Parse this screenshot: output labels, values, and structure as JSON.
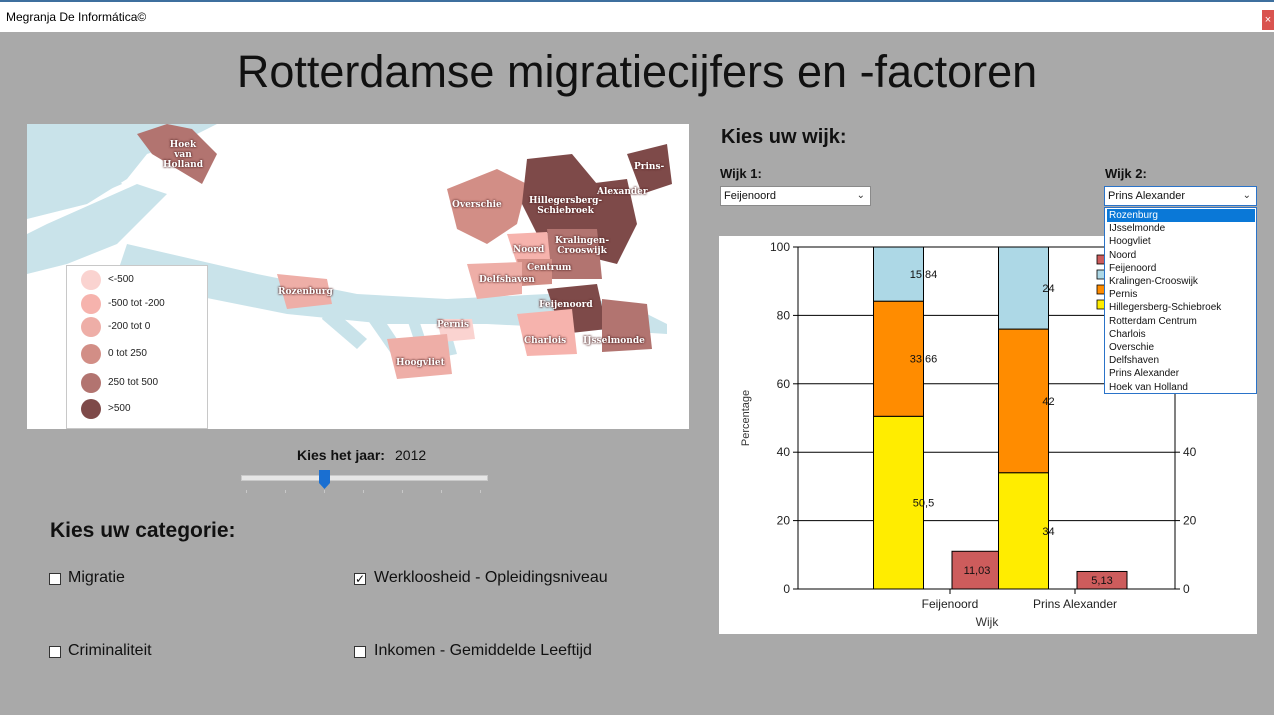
{
  "window": {
    "title": "Megranja De Informática©",
    "close_label": "×"
  },
  "page_title": "Rotterdamse migratiecijfers en -factoren",
  "map": {
    "legend": [
      {
        "label": "<-500",
        "color": "#fad3d0"
      },
      {
        "label": "-500 tot -200",
        "color": "#f6b3ad"
      },
      {
        "label": "-200 tot 0",
        "color": "#eeaea7"
      },
      {
        "label": "0 tot 250",
        "color": "#d28e86"
      },
      {
        "label": "250 tot 500",
        "color": "#b27470"
      },
      {
        "label": ">500",
        "color": "#7e4a49"
      }
    ],
    "district_labels": {
      "hoek_van_holland": "Hoek\nvan\nHolland",
      "overschie": "Overschie",
      "hillegersberg": "Hillegersberg-\nSchiebroek",
      "prins": "Prins-",
      "alexander": "Alexander",
      "noord": "Noord",
      "kralingen": "Kralingen-\nCrooswijk",
      "centrum": "Centrum",
      "delfshaven": "Delfshaven",
      "rozenburg": "Rozenburg",
      "feijenoord": "Feijenoord",
      "pernis": "Pernis",
      "charlois": "Charlois",
      "ijsselmonde": "IJsselmonde",
      "hoogvliet": "Hoogvliet"
    }
  },
  "year": {
    "label": "Kies het jaar:",
    "value": "2012"
  },
  "categories": {
    "heading": "Kies uw categorie:",
    "items": [
      {
        "label": "Migratie",
        "checked": false
      },
      {
        "label": "Werkloosheid - Opleidingsniveau",
        "checked": true
      },
      {
        "label": "Criminaliteit",
        "checked": false
      },
      {
        "label": "Inkomen - Gemiddelde Leeftijd",
        "checked": false
      }
    ]
  },
  "wijk": {
    "heading": "Kies uw wijk:",
    "wijk1_label": "Wijk 1:",
    "wijk1_value": "Feijenoord",
    "wijk2_label": "Wijk 2:",
    "wijk2_value": "Prins Alexander",
    "dropdown_options": [
      "Rozenburg",
      "IJsselmonde",
      "Hoogvliet",
      "Noord",
      "Feijenoord",
      "Kralingen-Crooswijk",
      "Pernis",
      "Hillegersberg-Schiebroek",
      "Rotterdam Centrum",
      "Charlois",
      "Overschie",
      "Delfshaven",
      "Prins Alexander",
      "Hoek van Holland"
    ],
    "dropdown_highlighted": "Rozenburg"
  },
  "chart_data": {
    "type": "bar",
    "categories": [
      "Feijenoord",
      "Prins Alexander"
    ],
    "stacked_series": [
      {
        "values": [
          50.5,
          34
        ],
        "labels": [
          "50,5",
          "34"
        ],
        "color": "#ffed00"
      },
      {
        "values": [
          33.66,
          42
        ],
        "labels": [
          "33,66",
          "42"
        ],
        "color": "#ff8c00"
      },
      {
        "values": [
          15.84,
          24
        ],
        "labels": [
          "15,84",
          "24"
        ],
        "color": "#add8e6"
      }
    ],
    "side_series": {
      "values": [
        11.03,
        5.13
      ],
      "labels": [
        "11,03",
        "5,13"
      ],
      "color": "#cd5c5c"
    },
    "legend_colors": [
      "#cd5c5c",
      "#add8e6",
      "#ff8c00",
      "#ffed00"
    ],
    "xlabel": "Wijk",
    "ylabel": "Percentage",
    "ylim": [
      0,
      100
    ],
    "yticks_left": [
      "0",
      "20",
      "40",
      "60",
      "80",
      "100"
    ],
    "yticks_right": [
      "0",
      "20",
      "40"
    ]
  }
}
